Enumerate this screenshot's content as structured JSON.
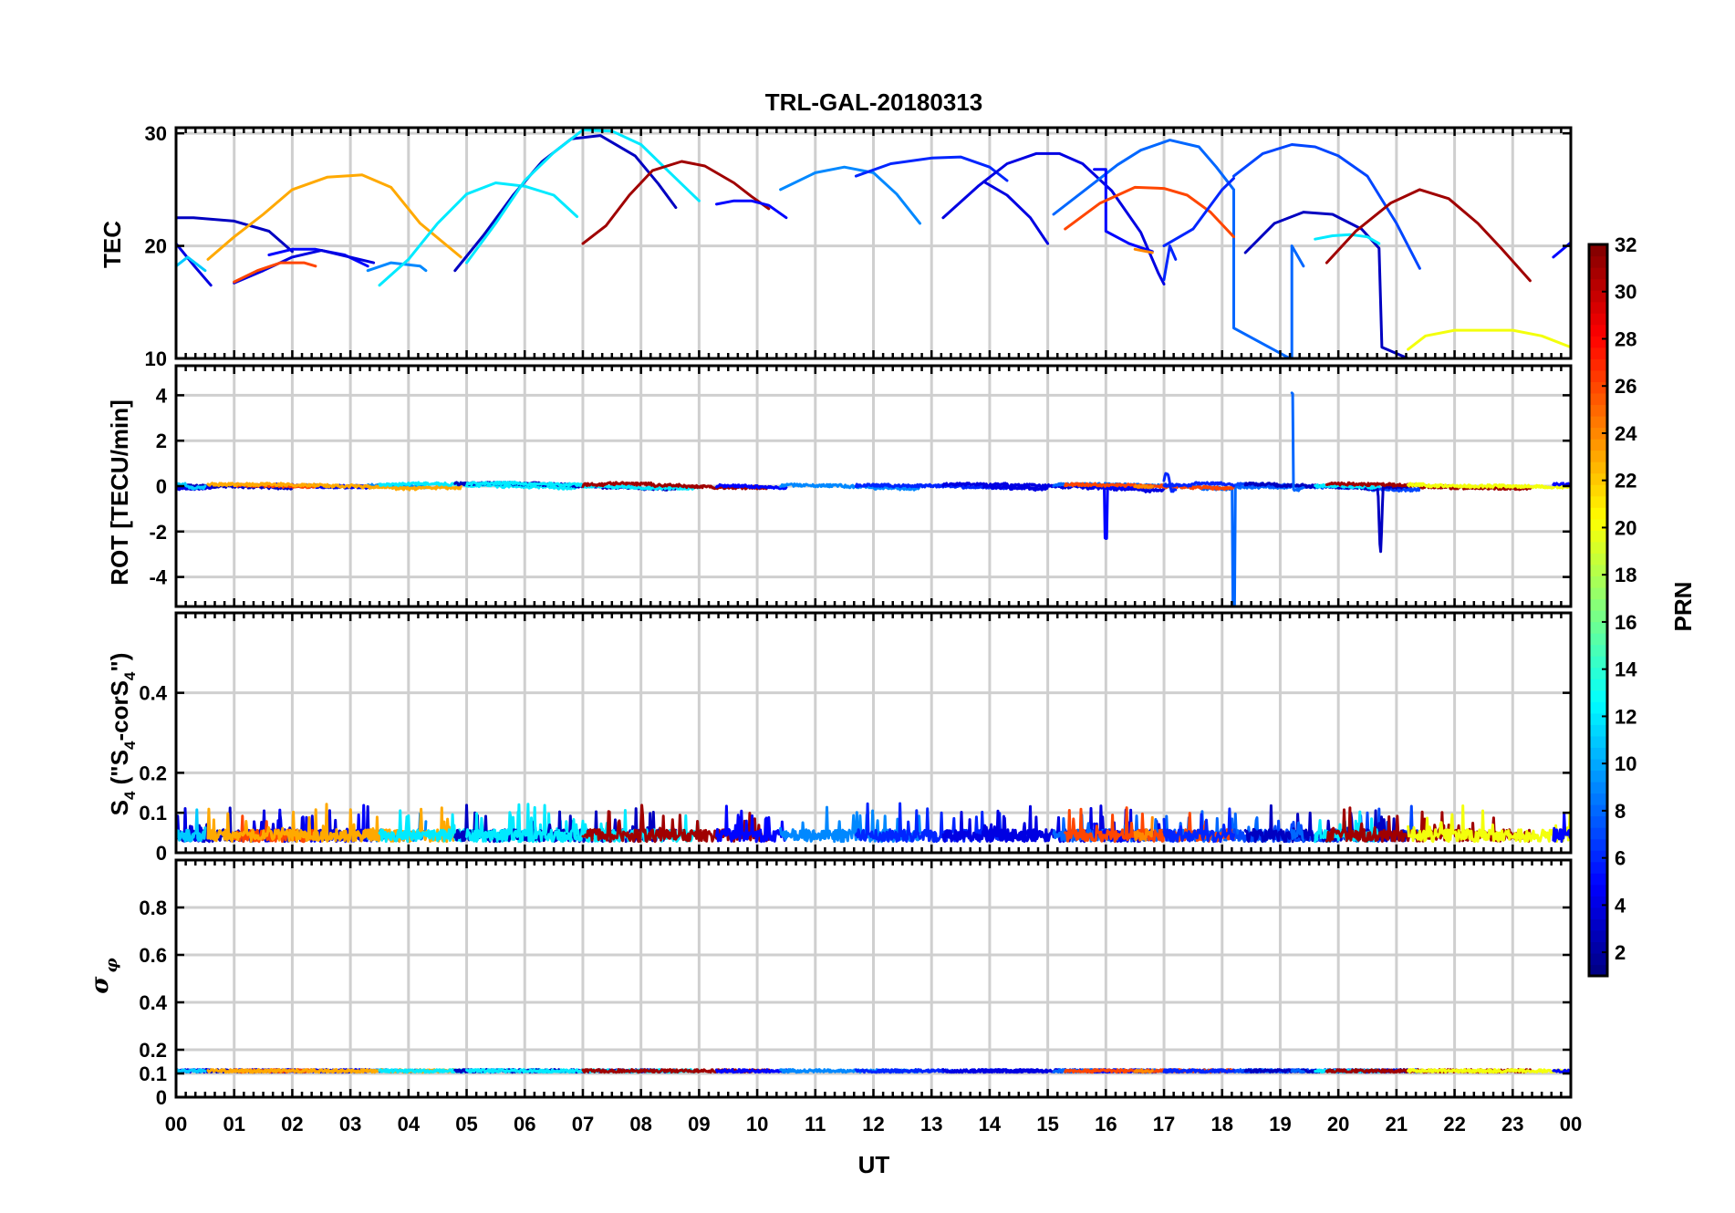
{
  "chart_data": {
    "type": "line",
    "title": "TRL-GAL-20180313",
    "xlabel": "UT",
    "x_range": [
      0,
      24
    ],
    "x_tick_labels": [
      "00",
      "01",
      "02",
      "03",
      "04",
      "05",
      "06",
      "07",
      "08",
      "09",
      "10",
      "11",
      "12",
      "13",
      "14",
      "15",
      "16",
      "17",
      "18",
      "19",
      "20",
      "21",
      "22",
      "23",
      "00"
    ],
    "colorbar": {
      "label": "PRN",
      "range": [
        1,
        32
      ],
      "tick_values": [
        2,
        4,
        6,
        8,
        10,
        12,
        14,
        16,
        18,
        20,
        22,
        24,
        26,
        28,
        30,
        32
      ],
      "tick_labels": [
        "2",
        "4",
        "6",
        "8",
        "10",
        "12",
        "14",
        "16",
        "18",
        "20",
        "22",
        "24",
        "26",
        "28",
        "30",
        "32"
      ],
      "colormap": "jet"
    },
    "panels": [
      {
        "name": "tec",
        "ylabel": "TEC",
        "ylim": [
          10,
          30.5
        ],
        "ytick_values": [
          10,
          20,
          30
        ],
        "ytick_labels": [
          "10",
          "20",
          "30"
        ],
        "series": [
          {
            "prn": 3,
            "x": [
              0.0,
              0.3,
              1.0,
              1.6,
              2.0
            ],
            "y": [
              22.5,
              22.5,
              22.2,
              21.3,
              19.5
            ]
          },
          {
            "prn": 5,
            "x": [
              1.6,
              2.0,
              2.4,
              2.9,
              3.3
            ],
            "y": [
              19.2,
              19.7,
              19.7,
              19.2,
              18.2
            ]
          },
          {
            "prn": 4,
            "x": [
              1.0,
              1.5,
              2.0,
              2.5,
              3.4
            ],
            "y": [
              16.7,
              17.8,
              19.0,
              19.6,
              18.5
            ]
          },
          {
            "prn": 4,
            "x": [
              0.0,
              0.3,
              0.6
            ],
            "y": [
              20.2,
              18.3,
              16.5
            ]
          },
          {
            "prn": 11,
            "x": [
              0.0,
              0.2,
              0.5
            ],
            "y": [
              18.2,
              19.0,
              17.8
            ]
          },
          {
            "prn": 9,
            "x": [
              3.3,
              3.7,
              4.2,
              4.3
            ],
            "y": [
              17.8,
              18.5,
              18.2,
              17.8
            ]
          },
          {
            "prn": 26,
            "x": [
              1.0,
              1.4,
              1.8,
              2.2,
              2.4
            ],
            "y": [
              16.8,
              17.8,
              18.5,
              18.5,
              18.2
            ]
          },
          {
            "prn": 23,
            "x": [
              0.55,
              1.0,
              1.5,
              2.0,
              2.6,
              3.2,
              3.7,
              4.2,
              4.9
            ],
            "y": [
              18.8,
              20.8,
              22.8,
              25.0,
              26.1,
              26.3,
              25.2,
              22.0,
              19.0
            ]
          },
          {
            "prn": 12,
            "x": [
              3.5,
              4.0,
              4.5,
              5.0,
              5.5,
              6.0,
              6.5,
              6.9
            ],
            "y": [
              16.5,
              18.8,
              22.0,
              24.6,
              25.6,
              25.3,
              24.5,
              22.6
            ]
          },
          {
            "prn": 3,
            "x": [
              4.8,
              5.3,
              5.8,
              6.3,
              6.8,
              7.3,
              7.9,
              8.3,
              8.6
            ],
            "y": [
              17.8,
              21.0,
              24.5,
              27.5,
              29.5,
              29.8,
              28.0,
              25.5,
              23.4
            ]
          },
          {
            "prn": 12,
            "x": [
              5.0,
              5.5,
              6.0,
              6.5,
              7.0,
              7.5,
              8.0,
              8.5,
              9.0
            ],
            "y": [
              18.5,
              22.0,
              25.8,
              28.3,
              30.3,
              30.2,
              29.0,
              26.5,
              24.0
            ]
          },
          {
            "prn": 31,
            "x": [
              7.0,
              7.4,
              7.8,
              8.2,
              8.7,
              9.1,
              9.6,
              9.9,
              10.2
            ],
            "y": [
              20.2,
              21.8,
              24.5,
              26.7,
              27.5,
              27.1,
              25.6,
              24.4,
              23.3
            ]
          },
          {
            "prn": 5,
            "x": [
              9.3,
              9.6,
              9.9,
              10.2,
              10.5
            ],
            "y": [
              23.7,
              24.0,
              24.0,
              23.6,
              22.5
            ]
          },
          {
            "prn": 9,
            "x": [
              10.4,
              11.0,
              11.5,
              12.0,
              12.4,
              12.8
            ],
            "y": [
              25.0,
              26.5,
              27.0,
              26.5,
              24.6,
              22.0
            ]
          },
          {
            "prn": 6,
            "x": [
              11.7,
              12.3,
              13.0,
              13.5,
              14.0,
              14.3
            ],
            "y": [
              26.2,
              27.3,
              27.8,
              27.9,
              27.0,
              25.8
            ]
          },
          {
            "prn": 4,
            "x": [
              13.2,
              13.8,
              14.3,
              14.8,
              15.2,
              15.6,
              16.1,
              16.6,
              16.9,
              17.0
            ],
            "y": [
              22.5,
              25.3,
              27.3,
              28.2,
              28.2,
              27.3,
              24.9,
              21.2,
              17.6,
              16.6
            ]
          },
          {
            "prn": 4,
            "x": [
              13.9,
              14.3,
              14.7,
              15.0
            ],
            "y": [
              25.7,
              24.5,
              22.5,
              20.2
            ]
          },
          {
            "prn": 8,
            "x": [
              15.1,
              15.7,
              16.2,
              16.6,
              17.1,
              17.6,
              17.9,
              18.2,
              18.2,
              19.2
            ],
            "y": [
              22.8,
              25.2,
              27.2,
              28.5,
              29.4,
              28.8,
              27.0,
              25.0,
              12.7,
              9.9
            ]
          },
          {
            "prn": 5,
            "x": [
              15.8,
              16.0,
              16.0,
              16.4,
              16.8
            ],
            "y": [
              26.8,
              26.8,
              21.3,
              20.2,
              19.5
            ]
          },
          {
            "prn": 26,
            "x": [
              15.3,
              15.9,
              16.5,
              17.0,
              17.4,
              17.8,
              18.2
            ],
            "y": [
              21.5,
              23.8,
              25.2,
              25.1,
              24.5,
              23.0,
              20.8
            ]
          },
          {
            "prn": 24,
            "x": [
              16.5,
              16.8
            ],
            "y": [
              19.7,
              19.4
            ]
          },
          {
            "prn": 6,
            "x": [
              17.0,
              17.1,
              17.2
            ],
            "y": [
              17.0,
              20.0,
              18.8
            ]
          },
          {
            "prn": 7,
            "x": [
              18.2,
              18.7,
              19.2,
              19.6,
              20.0,
              20.5,
              21.0,
              21.4
            ],
            "y": [
              26.2,
              28.2,
              29.0,
              28.8,
              28.0,
              26.2,
              22.0,
              18.0
            ]
          },
          {
            "prn": 6,
            "x": [
              17.0,
              17.5,
              18.0,
              18.2
            ],
            "y": [
              20.0,
              21.5,
              25.0,
              26.0
            ]
          },
          {
            "prn": 3,
            "x": [
              18.4,
              18.9,
              19.4,
              19.9,
              20.4,
              20.7,
              20.75,
              21.2
            ],
            "y": [
              19.4,
              22.0,
              23.0,
              22.8,
              21.5,
              19.8,
              11.0,
              10.0
            ]
          },
          {
            "prn": 8,
            "x": [
              19.2,
              19.2,
              19.4
            ],
            "y": [
              10.0,
              20.0,
              18.2
            ]
          },
          {
            "prn": 12,
            "x": [
              19.6,
              19.9,
              20.2,
              20.5,
              20.7
            ],
            "y": [
              20.6,
              20.9,
              21.0,
              20.8,
              20.2
            ]
          },
          {
            "prn": 31,
            "x": [
              19.8,
              20.3,
              20.9,
              21.4,
              21.9,
              22.4,
              22.8,
              23.3
            ],
            "y": [
              18.5,
              21.3,
              23.8,
              25.0,
              24.2,
              22.0,
              19.8,
              16.9
            ]
          },
          {
            "prn": 20,
            "x": [
              21.2,
              21.5,
              22.0,
              22.5,
              23.0,
              23.5,
              24.0
            ],
            "y": [
              10.8,
              12.0,
              12.5,
              12.5,
              12.5,
              12.0,
              11.0
            ]
          },
          {
            "prn": 5,
            "x": [
              23.7,
              24.0
            ],
            "y": [
              19.0,
              20.3
            ]
          }
        ]
      },
      {
        "name": "rot",
        "ylabel": "ROT [TECU/min]",
        "ylim": [
          -5.3,
          5.3
        ],
        "ytick_values": [
          -4,
          -2,
          0,
          2,
          4
        ],
        "ytick_labels": [
          "-4",
          "-2",
          "0",
          "2",
          "4"
        ]
      },
      {
        "name": "s4",
        "ylabel": "S4 (\"S4-corS4\")",
        "ylim": [
          0,
          0.6
        ],
        "ytick_values": [
          0,
          0.1,
          0.2,
          0.4
        ],
        "ytick_labels": [
          "0",
          "0.1",
          "0.2",
          "0.4"
        ]
      },
      {
        "name": "sigma-phi",
        "ylabel": "σ φ",
        "ylim": [
          0,
          1.0
        ],
        "ytick_values": [
          0,
          0.1,
          0.2,
          0.4,
          0.6,
          0.8
        ],
        "ytick_labels": [
          "0",
          "0.1",
          "0.2",
          "0.4",
          "0.6",
          "0.8"
        ]
      }
    ]
  }
}
